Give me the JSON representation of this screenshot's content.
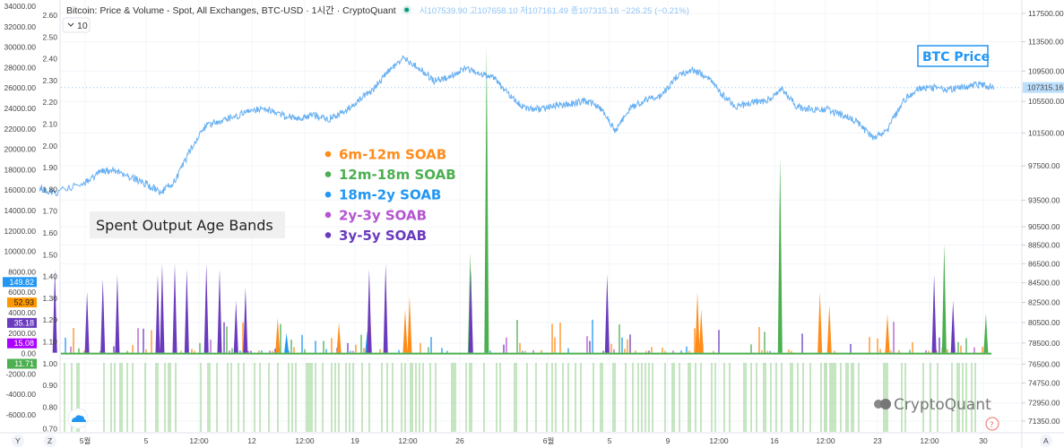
{
  "header": {
    "title": "Bitcoin: Price & Volume - Spot, All Exchanges, BTC-USD · 1시간 · CryptoQuant",
    "ohlc": "시107539.90 고107658.10 저107161.49 종107315.16 −226.25 (−0.21%)",
    "indicator_count": "10"
  },
  "annotations": {
    "subtitle": "Spent Output Age Bands",
    "price_label": "BTC Price",
    "watermark": "CryptoQuant"
  },
  "axis_buttons": {
    "y": "Y",
    "z": "Z",
    "a": "A"
  },
  "colors": {
    "price": "#64aef2",
    "soab_6m_12m": "#ff8c1a",
    "soab_12m_18m": "#4caf50",
    "soab_18m_2y": "#2196f3",
    "soab_2y_3y": "#b455d0",
    "soab_3y_5y": "#6a3bbd",
    "indicator": "#9fd69a"
  },
  "chart_data": {
    "type": "line",
    "title": "Bitcoin: Price & Volume - Spot, All Exchanges, BTC-USD · 1시간 · CryptoQuant",
    "grid": true,
    "legend_placement": "center",
    "x_ticks": [
      "5월",
      "5",
      "12:00",
      "12",
      "12:00",
      "19",
      "12:00",
      "26",
      "6월",
      "5",
      "9",
      "12:00",
      "16",
      "12:00",
      "23",
      "12:00",
      "30"
    ],
    "right_axis": {
      "scale": "log",
      "range": [
        71350,
        117500
      ],
      "ticks": [
        "117500.00",
        "113500.00",
        "109500.00",
        "105500.00",
        "101500.00",
        "97500.00",
        "93500.00",
        "90500.00",
        "88500.00",
        "86500.00",
        "84500.00",
        "82500.00",
        "80500.00",
        "78500.00",
        "76500.00",
        "74750.00",
        "72950.00",
        "71350.00"
      ],
      "last_price_label": "107315.16"
    },
    "left_axis_outer": {
      "ticks": [
        "34000.00",
        "32000.00",
        "30000.00",
        "28000.00",
        "26000.00",
        "24000.00",
        "22000.00",
        "20000.00",
        "18000.00",
        "16000.00",
        "14000.00",
        "12000.00",
        "10000.00",
        "8000.00",
        "6000.00",
        "4000.00",
        "2000.00",
        "0.00",
        "-2000.00",
        "-4000.00",
        "-6000.00"
      ]
    },
    "left_axis_inner": {
      "range": [
        0.7,
        2.6
      ],
      "ticks": [
        "2.60",
        "2.50",
        "2.40",
        "2.30",
        "2.20",
        "2.10",
        "2.00",
        "1.90",
        "1.80",
        "1.70",
        "1.60",
        "1.50",
        "1.40",
        "1.30",
        "1.20",
        "1.10",
        "1.00",
        "0.90",
        "0.80",
        "0.70"
      ]
    },
    "last_value_badges": [
      {
        "value": "149.82",
        "color": "#2196f3"
      },
      {
        "value": "52.93",
        "color": "#ff9800"
      },
      {
        "value": "35.18",
        "color": "#6a3bbd"
      },
      {
        "value": "15.08",
        "color": "#aa00ff"
      },
      {
        "value": "11.71",
        "color": "#4caf50"
      }
    ],
    "price_series": {
      "name": "BTC Price",
      "points": [
        [
          "04-29",
          94900
        ],
        [
          "04-30",
          94400
        ],
        [
          "05-01",
          95400
        ],
        [
          "05-02",
          96800
        ],
        [
          "05-03",
          97000
        ],
        [
          "05-04",
          96200
        ],
        [
          "05-05",
          95400
        ],
        [
          "05-06",
          94400
        ],
        [
          "05-07",
          95800
        ],
        [
          "05-08",
          99700
        ],
        [
          "05-09",
          102500
        ],
        [
          "05-10",
          103100
        ],
        [
          "05-11",
          103600
        ],
        [
          "05-12",
          104500
        ],
        [
          "05-13",
          104500
        ],
        [
          "05-14",
          103800
        ],
        [
          "05-15",
          103300
        ],
        [
          "05-16",
          103800
        ],
        [
          "05-17",
          103200
        ],
        [
          "05-18",
          104000
        ],
        [
          "05-19",
          105600
        ],
        [
          "05-20",
          107000
        ],
        [
          "05-21",
          109500
        ],
        [
          "05-22",
          111200
        ],
        [
          "05-23",
          110000
        ],
        [
          "05-24",
          108200
        ],
        [
          "05-25",
          108700
        ],
        [
          "05-26",
          109800
        ],
        [
          "05-27",
          109300
        ],
        [
          "05-28",
          108600
        ],
        [
          "05-29",
          106200
        ],
        [
          "05-30",
          104700
        ],
        [
          "05-31",
          104500
        ],
        [
          "06-01",
          105000
        ],
        [
          "06-02",
          105200
        ],
        [
          "06-03",
          105600
        ],
        [
          "06-04",
          104700
        ],
        [
          "06-05",
          101800
        ],
        [
          "06-06",
          104600
        ],
        [
          "06-07",
          105800
        ],
        [
          "06-08",
          106200
        ],
        [
          "06-09",
          108600
        ],
        [
          "06-10",
          109700
        ],
        [
          "06-11",
          108800
        ],
        [
          "06-12",
          106500
        ],
        [
          "06-13",
          104800
        ],
        [
          "06-14",
          105400
        ],
        [
          "06-15",
          105600
        ],
        [
          "06-16",
          107200
        ],
        [
          "06-17",
          104800
        ],
        [
          "06-18",
          104500
        ],
        [
          "06-19",
          104500
        ],
        [
          "06-20",
          103700
        ],
        [
          "06-21",
          102900
        ],
        [
          "06-22",
          100800
        ],
        [
          "06-23",
          102000
        ],
        [
          "06-24",
          105600
        ],
        [
          "06-25",
          107200
        ],
        [
          "06-26",
          107300
        ],
        [
          "06-27",
          107100
        ],
        [
          "06-28",
          107400
        ],
        [
          "06-29",
          107700
        ],
        [
          "06-30",
          107315
        ]
      ]
    },
    "soab_series": [
      {
        "name": "6m-12m SOAB",
        "color": "#ff8c1a",
        "spikes": [
          [
            "05-13 17:00",
            1.21
          ],
          [
            "05-17 18:00",
            1.19
          ],
          [
            "05-19 19:00",
            1.27
          ],
          [
            "05-22 03:00",
            1.25
          ],
          [
            "05-22 10:00",
            1.31
          ],
          [
            "06-10 10:00",
            1.33
          ],
          [
            "06-10 16:00",
            1.25
          ],
          [
            "06-18 12:00",
            1.33
          ],
          [
            "06-19 03:00",
            1.27
          ],
          [
            "06-22 23:00",
            1.23
          ]
        ]
      },
      {
        "name": "12m-18m SOAB",
        "color": "#4caf50",
        "spikes": [
          [
            "05-26 10:00",
            1.51
          ],
          [
            "05-27 12:00",
            2.46
          ],
          [
            "06-15 21:00",
            1.95
          ],
          [
            "06-26 17:00",
            1.55
          ],
          [
            "06-29 11:00",
            1.23
          ]
        ]
      },
      {
        "name": "18m-2y SOAB",
        "color": "#2196f3",
        "spikes": [
          [
            "05-14 07:00",
            1.14
          ],
          [
            "05-19 15:00",
            1.15
          ]
        ]
      },
      {
        "name": "2y-3y SOAB",
        "color": "#b455d0",
        "spikes": []
      },
      {
        "name": "3y-5y SOAB",
        "color": "#6a3bbd",
        "spikes": [
          [
            "04-30 00:00",
            1.435
          ],
          [
            "05-01 03:00",
            1.33
          ],
          [
            "05-02 04:00",
            1.39
          ],
          [
            "05-03 03:00",
            1.41
          ],
          [
            "05-05 19:00",
            1.41
          ],
          [
            "05-06 02:00",
            1.46
          ],
          [
            "05-06 22:00",
            1.46
          ],
          [
            "05-07 17:00",
            1.435
          ],
          [
            "05-09 00:00",
            1.46
          ],
          [
            "05-09 21:00",
            1.435
          ],
          [
            "05-10 23:00",
            1.29
          ],
          [
            "05-11 14:00",
            1.35
          ],
          [
            "05-19 18:00",
            1.435
          ],
          [
            "05-20 20:00",
            1.46
          ],
          [
            "05-26 11:00",
            1.435
          ],
          [
            "06-04 11:00",
            1.41
          ],
          [
            "06-26 01:00",
            1.41
          ],
          [
            "06-27 07:00",
            1.29
          ]
        ]
      }
    ]
  }
}
